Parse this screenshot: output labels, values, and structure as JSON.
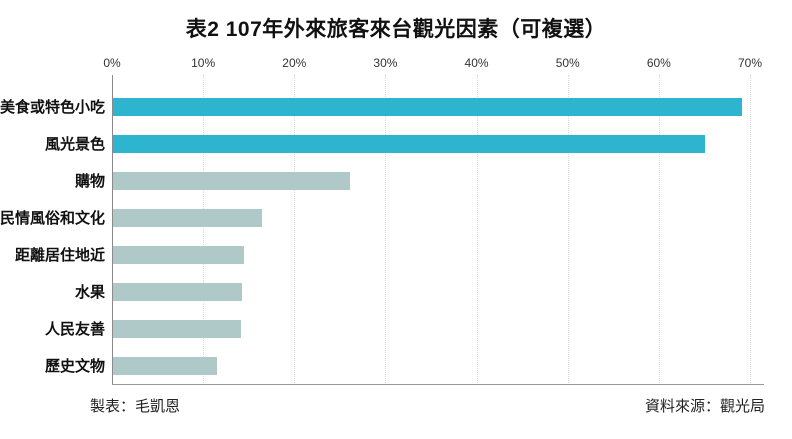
{
  "title": "表2 107年外來旅客來台觀光因素（可複選）",
  "axis": {
    "tick_labels": [
      "0%",
      "10%",
      "20%",
      "30%",
      "40%",
      "50%",
      "60%",
      "70%"
    ],
    "max": 70
  },
  "bars": [
    {
      "label": "美食或特色小吃",
      "value": 69,
      "color": "#2DB5CF"
    },
    {
      "label": "風光景色",
      "value": 65,
      "color": "#2DB5CF"
    },
    {
      "label": "購物",
      "value": 26,
      "color": "#AFC9C9"
    },
    {
      "label": "民情風俗和文化",
      "value": 16.4,
      "color": "#AFC9C9"
    },
    {
      "label": "距離居住地近",
      "value": 14.4,
      "color": "#AFC9C9"
    },
    {
      "label": "水果",
      "value": 14.2,
      "color": "#AFC9C9"
    },
    {
      "label": "人民友善",
      "value": 14,
      "color": "#AFC9C9"
    },
    {
      "label": "歷史文物",
      "value": 11.4,
      "color": "#AFC9C9"
    }
  ],
  "footer": {
    "left": "製表：毛凱恩",
    "right": "資料來源：觀光局"
  },
  "colors": {
    "highlight": "#2DB5CF",
    "muted": "#AFC9C9",
    "grid": "#D9D9D9",
    "axis": "#9A9A9A",
    "text": "#111111"
  },
  "chart_data": {
    "type": "bar",
    "orientation": "horizontal",
    "title": "表2 107年外來旅客來台觀光因素（可複選）",
    "categories": [
      "美食或特色小吃",
      "風光景色",
      "購物",
      "民情風俗和文化",
      "距離居住地近",
      "水果",
      "人民友善",
      "歷史文物"
    ],
    "values": [
      69,
      65,
      26,
      16.4,
      14.4,
      14.2,
      14,
      11.4
    ],
    "bar_colors": [
      "#2DB5CF",
      "#2DB5CF",
      "#AFC9C9",
      "#AFC9C9",
      "#AFC9C9",
      "#AFC9C9",
      "#AFC9C9",
      "#AFC9C9"
    ],
    "highlight_categories": [
      "美食或特色小吃",
      "風光景色"
    ],
    "xlabel": "",
    "ylabel": "",
    "xlim": [
      0,
      70
    ],
    "x_tick_labels": [
      "0%",
      "10%",
      "20%",
      "30%",
      "40%",
      "50%",
      "60%",
      "70%"
    ],
    "grid": true,
    "legend": false,
    "annotations": [
      "製表：毛凱恩",
      "資料來源：觀光局"
    ]
  }
}
